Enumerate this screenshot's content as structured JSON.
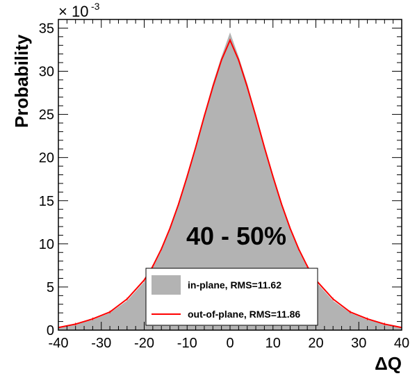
{
  "chart_data": {
    "type": "area",
    "title": "",
    "xlabel": "ΔQ",
    "ylabel": "Probability",
    "y_multiplier_base": "× 10",
    "y_multiplier_exp": "-3",
    "xlim": [
      -40,
      40
    ],
    "ylim": [
      0,
      36
    ],
    "xticks": [
      -40,
      -30,
      -20,
      -10,
      0,
      10,
      20,
      30,
      40
    ],
    "yticks": [
      0,
      5,
      10,
      15,
      20,
      25,
      30,
      35
    ],
    "grid": false,
    "annotation": "40 - 50%",
    "legend_position": "bottom-center",
    "series": [
      {
        "name": "in-plane, RMS=11.62",
        "style": "filled-histogram",
        "color": "#b3b3b3",
        "x": [
          -40,
          -36,
          -32,
          -28,
          -24,
          -20,
          -18,
          -16,
          -14,
          -12,
          -10,
          -8,
          -6,
          -4,
          -2,
          0,
          2,
          4,
          6,
          8,
          10,
          12,
          14,
          16,
          18,
          20,
          24,
          28,
          32,
          36,
          40
        ],
        "values": [
          0.3,
          0.7,
          1.2,
          2.0,
          3.4,
          5.6,
          7.2,
          9.2,
          11.6,
          14.5,
          17.8,
          21.3,
          25.0,
          28.6,
          31.7,
          34.5,
          31.7,
          28.6,
          25.0,
          21.3,
          17.8,
          14.5,
          11.6,
          9.2,
          7.2,
          5.6,
          3.4,
          2.0,
          1.2,
          0.7,
          0.3
        ]
      },
      {
        "name": "out-of-plane, RMS=11.86",
        "style": "line",
        "color": "#ff0000",
        "x": [
          -40,
          -36,
          -32,
          -28,
          -24,
          -20,
          -18,
          -16,
          -14,
          -12,
          -10,
          -8,
          -6,
          -4,
          -2,
          0,
          2,
          4,
          6,
          8,
          10,
          12,
          14,
          16,
          18,
          20,
          24,
          28,
          32,
          36,
          40
        ],
        "values": [
          0.3,
          0.7,
          1.3,
          2.1,
          3.6,
          5.8,
          7.4,
          9.4,
          11.8,
          14.6,
          17.8,
          21.2,
          24.8,
          28.2,
          31.3,
          33.6,
          31.3,
          28.2,
          24.8,
          21.2,
          17.8,
          14.6,
          11.8,
          9.4,
          7.4,
          5.8,
          3.6,
          2.1,
          1.3,
          0.7,
          0.3
        ]
      }
    ]
  }
}
